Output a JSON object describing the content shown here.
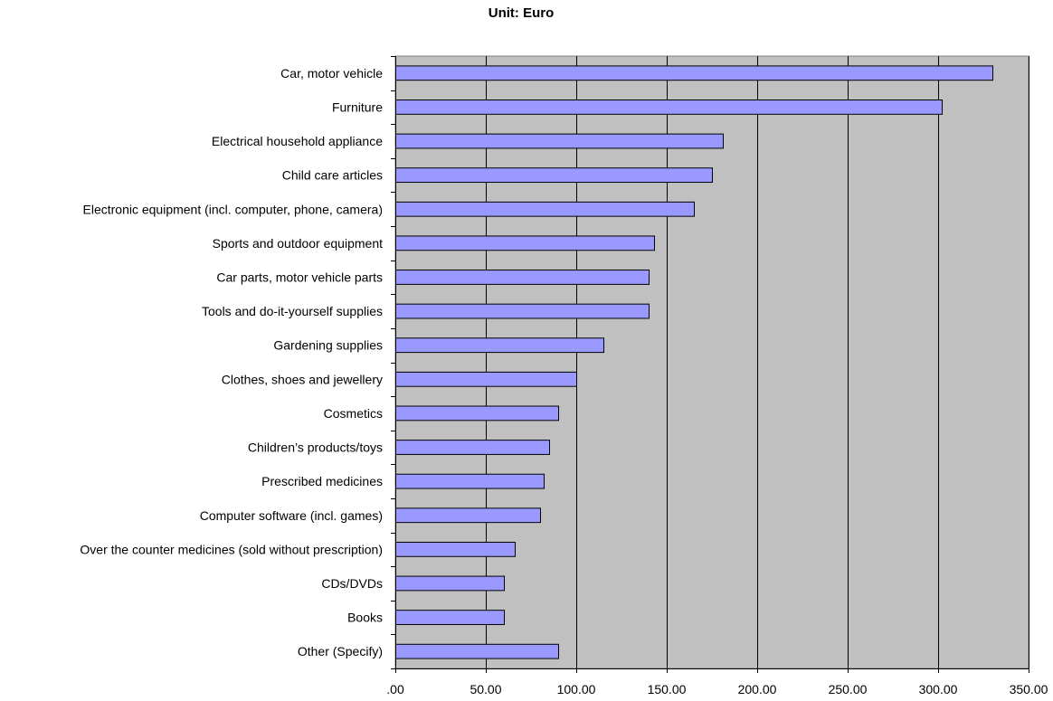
{
  "chart_data": {
    "type": "bar",
    "orientation": "horizontal",
    "title": "Unit: Euro",
    "xlabel": "",
    "ylabel": "",
    "categories": [
      "Car, motor vehicle",
      "Furniture",
      "Electrical household appliance",
      "Child care articles",
      "Electronic equipment (incl. computer, phone, camera)",
      "Sports and outdoor equipment",
      "Car parts, motor vehicle parts",
      "Tools and do-it-yourself supplies",
      "Gardening supplies",
      "Clothes, shoes and jewellery",
      "Cosmetics",
      "Children’s products/toys",
      "Prescribed medicines",
      "Computer software (incl. games)",
      "Over the counter medicines (sold without prescription)",
      "CDs/DVDs",
      "Books",
      "Other (Specify)"
    ],
    "values": [
      330,
      302,
      181,
      175,
      165,
      143,
      140,
      140,
      115,
      100,
      90,
      85,
      82,
      80,
      66,
      60,
      60,
      90
    ],
    "xlim": [
      0,
      350
    ],
    "xticks": [
      0,
      50,
      100,
      150,
      200,
      250,
      300,
      350
    ],
    "xtick_labels": [
      ".00",
      "50.00",
      "100.00",
      "150.00",
      "200.00",
      "250.00",
      "300.00",
      "350.00"
    ],
    "grid": "vertical",
    "legend": "none",
    "colors": {
      "bar_fill": "#9999ff",
      "bar_stroke": "#000000",
      "plot_background": "#c0c0c0",
      "gridline": "#000000"
    }
  }
}
